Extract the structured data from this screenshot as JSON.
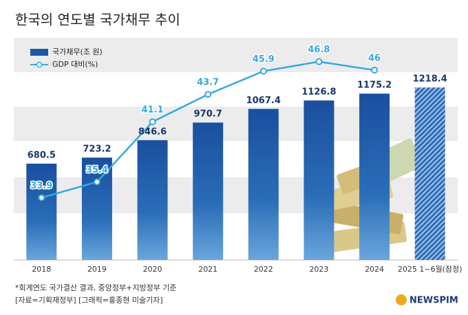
{
  "chart_data": {
    "type": "bar",
    "title": "한국의 연도별 국가채무 추이",
    "categories": [
      "2018",
      "2019",
      "2020",
      "2021",
      "2022",
      "2023",
      "2024",
      "2025 1~6월(잠정)"
    ],
    "series": [
      {
        "name": "국가채무(조 원)",
        "type": "bar",
        "color": "#1f56a5",
        "values": [
          680.5,
          723.2,
          846.6,
          970.7,
          1067.4,
          1126.8,
          1175.2,
          1218.4
        ]
      },
      {
        "name": "GDP 대비(%)",
        "type": "line",
        "axis": "y2",
        "color": "#35a8e0",
        "values": [
          33.9,
          35.4,
          41.1,
          43.7,
          45.9,
          46.8,
          46.0,
          null
        ]
      }
    ],
    "ylim": [
      0,
      1550
    ],
    "y2lim": [
      28,
      48.8
    ],
    "legend": "top-left",
    "annotations": [
      "*회계연도 국가결산 결과, 중앙정부+지방정부 기준",
      "[자료=기획재정부] [그래픽=홍종현 미술기자]",
      "NEWSPIM"
    ]
  }
}
